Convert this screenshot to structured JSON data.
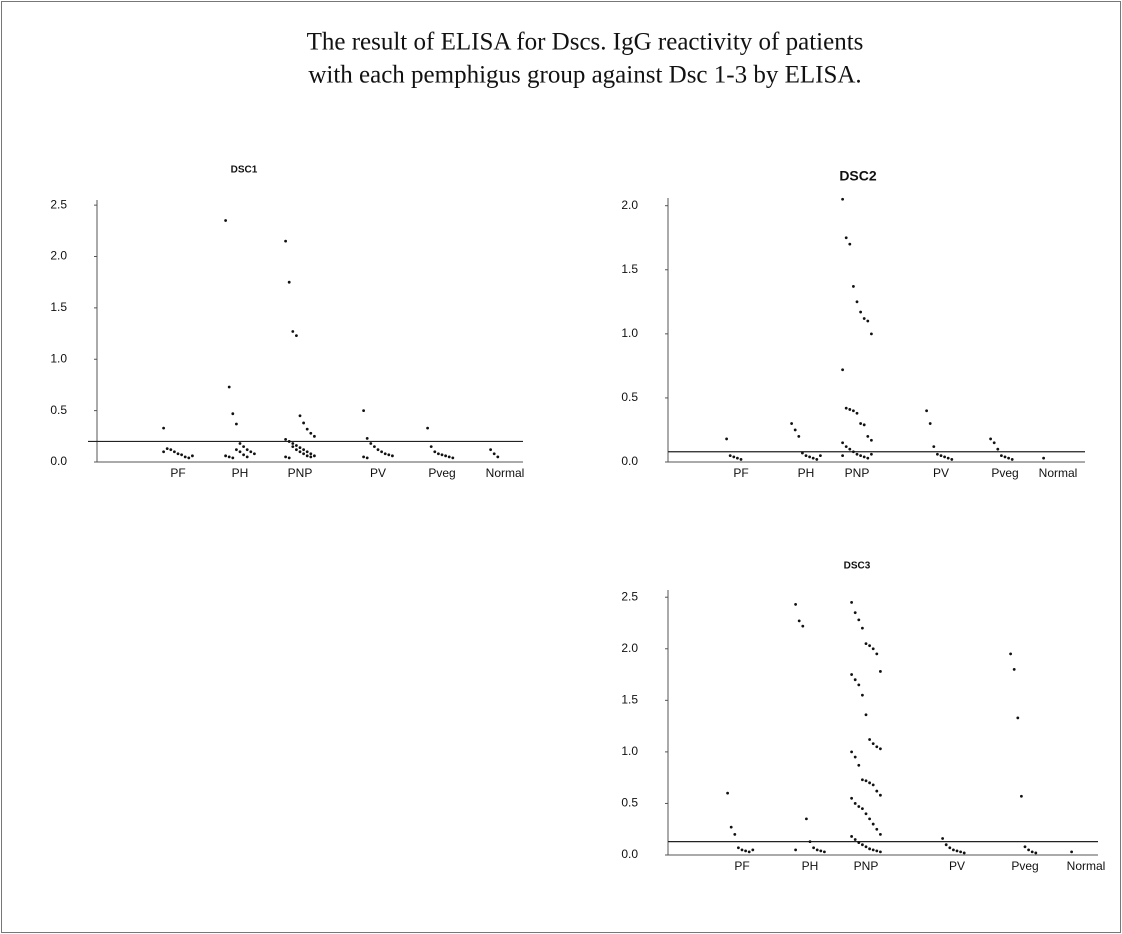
{
  "title_lines": [
    "The result of ELISA for Dscs. IgG reactivity of patients",
    "with each pemphigus group against Dsc 1-3 by ELISA."
  ],
  "chart_data": [
    {
      "type": "strip",
      "title": "DSC1",
      "categories": [
        "PF",
        "PH",
        "PNP",
        "PV",
        "Pveg",
        "Normal"
      ],
      "values": [
        [
          0.33,
          0.13,
          0.12,
          0.1,
          0.08,
          0.07,
          0.05,
          0.04,
          0.06,
          0.1
        ],
        [
          2.35,
          0.73,
          0.47,
          0.37,
          0.18,
          0.15,
          0.12,
          0.1,
          0.08,
          0.06,
          0.05,
          0.04,
          0.12,
          0.1,
          0.07,
          0.05
        ],
        [
          2.15,
          1.75,
          1.27,
          1.23,
          0.45,
          0.38,
          0.32,
          0.28,
          0.25,
          0.22,
          0.2,
          0.18,
          0.16,
          0.14,
          0.12,
          0.1,
          0.08,
          0.06,
          0.05,
          0.04,
          0.15,
          0.12,
          0.1,
          0.08,
          0.06,
          0.05
        ],
        [
          0.5,
          0.23,
          0.18,
          0.15,
          0.12,
          0.1,
          0.08,
          0.07,
          0.06,
          0.05,
          0.04
        ],
        [
          0.33,
          0.15,
          0.1,
          0.08,
          0.07,
          0.06,
          0.05,
          0.04
        ],
        [
          0.12,
          0.08,
          0.05
        ]
      ],
      "cutoff": 0.2,
      "color": "#111111",
      "ylim": [
        0,
        2.55
      ],
      "yticks": [
        {
          "value": 0,
          "label": "0.0"
        },
        0.5,
        {
          "value": 1,
          "label": "1.0"
        },
        1.5,
        {
          "value": 2,
          "label": "2.0"
        },
        2.5
      ]
    },
    {
      "type": "strip",
      "title": "DSC2",
      "categories": [
        "PF",
        "PH",
        "PNP",
        "PV",
        "Pveg",
        "Normal"
      ],
      "values": [
        [
          0.18,
          0.05,
          0.04,
          0.03,
          0.02
        ],
        [
          0.3,
          0.25,
          0.2,
          0.07,
          0.05,
          0.04,
          0.03,
          0.02,
          0.05
        ],
        [
          2.05,
          1.75,
          1.7,
          1.37,
          1.25,
          1.17,
          1.12,
          1.1,
          1.0,
          0.72,
          0.42,
          0.41,
          0.4,
          0.38,
          0.3,
          0.29,
          0.2,
          0.17,
          0.15,
          0.12,
          0.1,
          0.08,
          0.06,
          0.05,
          0.04,
          0.03,
          0.06,
          0.05
        ],
        [
          0.4,
          0.3,
          0.12,
          0.06,
          0.05,
          0.04,
          0.03,
          0.02
        ],
        [
          0.18,
          0.15,
          0.1,
          0.05,
          0.04,
          0.03,
          0.02
        ],
        [
          0.03
        ]
      ],
      "cutoff": 0.08,
      "color": "#111111",
      "ylim": [
        0,
        2.06
      ],
      "yticks": [
        {
          "value": 0,
          "label": "0.0"
        },
        0.5,
        {
          "value": 1,
          "label": "1.0"
        },
        1.5,
        {
          "value": 2,
          "label": "2.0"
        }
      ]
    },
    {
      "type": "strip",
      "title": "DSC3",
      "categories": [
        "PF",
        "PH",
        "PNP",
        "PV",
        "Pveg",
        "Normal"
      ],
      "values": [
        [
          0.6,
          0.27,
          0.2,
          0.07,
          0.05,
          0.04,
          0.03,
          0.05
        ],
        [
          2.43,
          2.27,
          2.22,
          0.35,
          0.13,
          0.07,
          0.05,
          0.04,
          0.03,
          0.05
        ],
        [
          2.45,
          2.35,
          2.28,
          2.2,
          2.05,
          2.03,
          2.0,
          1.95,
          1.78,
          1.75,
          1.7,
          1.65,
          1.55,
          1.36,
          1.12,
          1.08,
          1.05,
          1.03,
          1.0,
          0.95,
          0.87,
          0.73,
          0.72,
          0.7,
          0.68,
          0.62,
          0.58,
          0.55,
          0.5,
          0.47,
          0.45,
          0.4,
          0.35,
          0.3,
          0.25,
          0.2,
          0.18,
          0.15,
          0.12,
          0.1,
          0.08,
          0.06,
          0.05,
          0.04,
          0.03
        ],
        [
          0.16,
          0.1,
          0.07,
          0.05,
          0.04,
          0.03,
          0.02
        ],
        [
          1.95,
          1.8,
          1.33,
          0.57,
          0.08,
          0.05,
          0.03,
          0.02
        ],
        [
          0.03
        ]
      ],
      "cutoff": 0.13,
      "color": "#111111",
      "ylim": [
        0,
        2.57
      ],
      "yticks": [
        {
          "value": 0,
          "label": "0.0"
        },
        0.5,
        {
          "value": 1,
          "label": "1.0"
        },
        1.5,
        {
          "value": 2,
          "label": "2.0"
        },
        2.5
      ]
    }
  ]
}
